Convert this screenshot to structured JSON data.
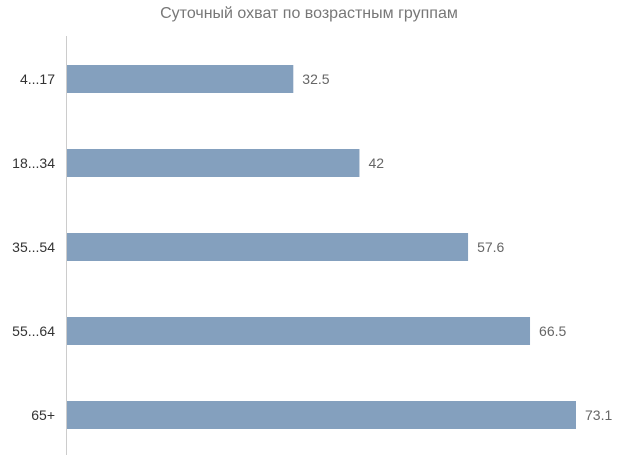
{
  "chart_data": {
    "type": "bar",
    "orientation": "horizontal",
    "title": "Суточный охват по возрастным группам",
    "xlabel": "",
    "ylabel": "",
    "categories": [
      "4...17",
      "18...34",
      "35...54",
      "55...64",
      "65+"
    ],
    "values": [
      32.5,
      42,
      57.6,
      66.5,
      73.1
    ],
    "value_labels": [
      "32.5",
      "42",
      "57.6",
      "66.5",
      "73.1"
    ],
    "xlim": [
      0,
      73.1
    ],
    "grid": false,
    "legend": "none",
    "bar_color": "#84a0be",
    "axis_color": "#cccccc"
  }
}
